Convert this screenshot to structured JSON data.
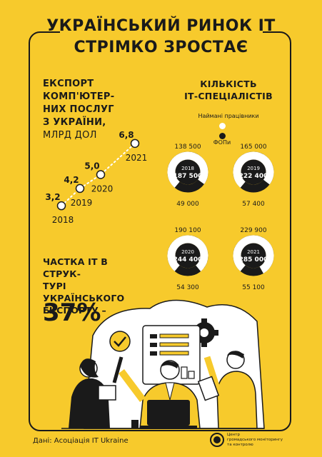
{
  "title": {
    "line1": "УКРАЇНСЬКИЙ РИНОК ІТ",
    "line2": "СТРІМКО ЗРОСТАЄ"
  },
  "export": {
    "title_lines": [
      "ЕКСПОРТ",
      "КОМП'ЮТЕР-",
      "НИХ ПОСЛУГ",
      "З УКРАЇНИ,"
    ],
    "unit": "МЛРД ДОЛ"
  },
  "share": {
    "title_lines": [
      "ЧАСТКА ІТ В СТРУК-",
      "ТУРІ УКРАЇНСЬКОГО",
      "ЕКСПОРТУ –"
    ],
    "value": "37%"
  },
  "specialists": {
    "title_lines": [
      "КІЛЬКІСТЬ",
      "ІТ-СПЕЦІАЛІСТІВ"
    ],
    "legend_employees": "Наймані працівники",
    "legend_fop": "ФОПи",
    "colors": {
      "employees": "#ffffff",
      "fop": "#1a1a1a"
    }
  },
  "chart_data": [
    {
      "type": "line",
      "x": [
        "2018",
        "2019",
        "2020",
        "2021"
      ],
      "series": [
        {
          "values": [
            3.2,
            4.2,
            5.0,
            6.8
          ],
          "labels": [
            "3,2",
            "4,2",
            "5,0",
            "6,8"
          ]
        }
      ],
      "xlabel": "",
      "ylabel": "",
      "ylim": [
        3,
        7
      ],
      "grid": false,
      "legend": "none"
    },
    {
      "type": "pie",
      "variant": "donut",
      "categories": [
        "Наймані працівники",
        "ФОПи"
      ],
      "charts": [
        {
          "year": "2018",
          "total": "187 500",
          "employees": "138 500",
          "fop": "49 000",
          "values": [
            138500,
            49000
          ]
        },
        {
          "year": "2019",
          "total": "222 400",
          "employees": "165 000",
          "fop": "57 400",
          "values": [
            165000,
            57400
          ]
        },
        {
          "year": "2020",
          "total": "244 400",
          "employees": "190 100",
          "fop": "54 300",
          "values": [
            190100,
            54300
          ]
        },
        {
          "year": "2021",
          "total": "285 000",
          "employees": "229 900",
          "fop": "55 100",
          "values": [
            229900,
            55100
          ]
        }
      ]
    }
  ],
  "footer": {
    "source": "Дані: Асоціація IT Ukraine",
    "org_lines": [
      "Центр",
      "громадського моніторингу",
      "та контролю"
    ]
  },
  "colors": {
    "background": "#f7ca2c",
    "ink": "#1a1a1a",
    "white": "#ffffff"
  }
}
